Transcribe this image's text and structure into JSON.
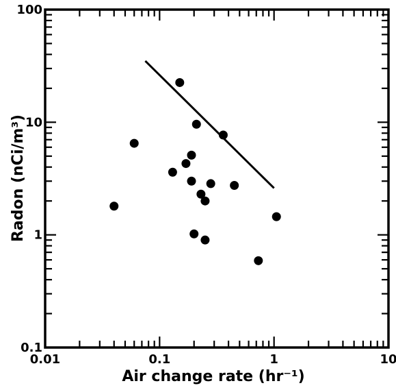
{
  "chart_data": {
    "type": "scatter",
    "title": "",
    "xlabel": "Air change rate (hr⁻¹)",
    "ylabel": "Radon (nCi/m³)",
    "xscale": "log",
    "yscale": "log",
    "xlim": [
      0.01,
      10
    ],
    "ylim": [
      0.1,
      100
    ],
    "x_ticks": [
      "0.01",
      "0.1",
      "1",
      "10"
    ],
    "y_ticks": [
      "0.1",
      "1",
      "10",
      "100"
    ],
    "grid": false,
    "legend": "none",
    "series": [
      {
        "points": [
          {
            "x": 0.04,
            "y": 1.8
          },
          {
            "x": 0.06,
            "y": 6.5
          },
          {
            "x": 0.13,
            "y": 3.6
          },
          {
            "x": 0.15,
            "y": 22.5
          },
          {
            "x": 0.17,
            "y": 4.3
          },
          {
            "x": 0.19,
            "y": 5.1
          },
          {
            "x": 0.19,
            "y": 3.0
          },
          {
            "x": 0.2,
            "y": 1.02
          },
          {
            "x": 0.21,
            "y": 9.6
          },
          {
            "x": 0.23,
            "y": 2.3
          },
          {
            "x": 0.25,
            "y": 2.0
          },
          {
            "x": 0.25,
            "y": 0.9
          },
          {
            "x": 0.28,
            "y": 2.85
          },
          {
            "x": 0.36,
            "y": 7.7
          },
          {
            "x": 0.45,
            "y": 2.75
          },
          {
            "x": 0.73,
            "y": 0.59
          },
          {
            "x": 1.05,
            "y": 1.45
          }
        ]
      }
    ],
    "trend_line": {
      "x": [
        0.075,
        1.0
      ],
      "y": [
        35,
        2.6
      ]
    }
  }
}
